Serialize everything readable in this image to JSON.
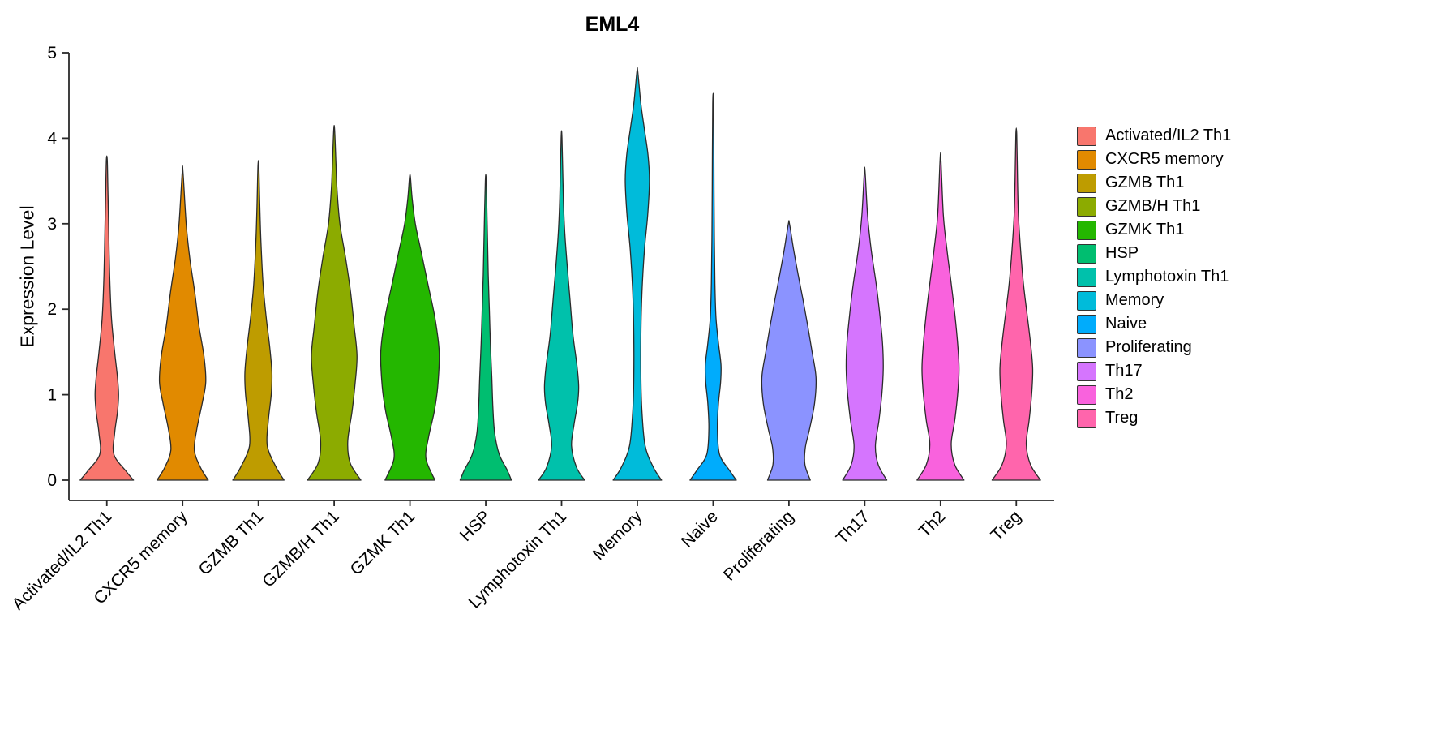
{
  "chart_data": {
    "type": "violin",
    "title": "EML4",
    "ylabel": "Expression Level",
    "ylim": [
      0,
      5
    ],
    "yticks": [
      0,
      1,
      2,
      3,
      4,
      5
    ],
    "legend_position": "right",
    "categories": [
      "Activated/IL2 Th1",
      "CXCR5 memory",
      "GZMB Th1",
      "GZMB/H Th1",
      "GZMK Th1",
      "HSP",
      "Lymphotoxin Th1",
      "Memory",
      "Naive",
      "Proliferating",
      "Th17",
      "Th2",
      "Treg"
    ],
    "series": [
      {
        "name": "Activated/IL2 Th1",
        "color": "#F8766D",
        "max_expression": 3.75,
        "profile": [
          [
            0,
            0.75
          ],
          [
            0.1,
            0.55
          ],
          [
            0.3,
            0.2
          ],
          [
            0.55,
            0.22
          ],
          [
            0.8,
            0.3
          ],
          [
            1.0,
            0.33
          ],
          [
            1.2,
            0.3
          ],
          [
            1.5,
            0.22
          ],
          [
            1.9,
            0.13
          ],
          [
            2.4,
            0.08
          ],
          [
            3.0,
            0.05
          ],
          [
            3.4,
            0.03
          ],
          [
            3.75,
            0.012
          ]
        ]
      },
      {
        "name": "CXCR5 memory",
        "color": "#E18A00",
        "max_expression": 3.6,
        "profile": [
          [
            0,
            0.72
          ],
          [
            0.15,
            0.5
          ],
          [
            0.35,
            0.33
          ],
          [
            0.6,
            0.4
          ],
          [
            0.9,
            0.55
          ],
          [
            1.15,
            0.65
          ],
          [
            1.45,
            0.6
          ],
          [
            1.8,
            0.46
          ],
          [
            2.2,
            0.34
          ],
          [
            2.6,
            0.2
          ],
          [
            3.0,
            0.1
          ],
          [
            3.6,
            0.012
          ]
        ]
      },
      {
        "name": "GZMB Th1",
        "color": "#BE9C00",
        "max_expression": 3.68,
        "profile": [
          [
            0,
            0.72
          ],
          [
            0.15,
            0.5
          ],
          [
            0.4,
            0.25
          ],
          [
            0.7,
            0.28
          ],
          [
            1.0,
            0.36
          ],
          [
            1.25,
            0.38
          ],
          [
            1.55,
            0.32
          ],
          [
            1.9,
            0.22
          ],
          [
            2.3,
            0.13
          ],
          [
            2.8,
            0.07
          ],
          [
            3.2,
            0.04
          ],
          [
            3.68,
            0.012
          ]
        ]
      },
      {
        "name": "GZMB/H Th1",
        "color": "#8CAB00",
        "max_expression": 4.1,
        "profile": [
          [
            0,
            0.75
          ],
          [
            0.2,
            0.45
          ],
          [
            0.45,
            0.38
          ],
          [
            0.8,
            0.5
          ],
          [
            1.1,
            0.58
          ],
          [
            1.45,
            0.64
          ],
          [
            1.8,
            0.56
          ],
          [
            2.2,
            0.46
          ],
          [
            2.6,
            0.32
          ],
          [
            3.0,
            0.16
          ],
          [
            3.4,
            0.08
          ],
          [
            3.7,
            0.05
          ],
          [
            4.1,
            0.012
          ]
        ]
      },
      {
        "name": "GZMK Th1",
        "color": "#24B700",
        "max_expression": 3.55,
        "profile": [
          [
            0,
            0.7
          ],
          [
            0.25,
            0.45
          ],
          [
            0.5,
            0.52
          ],
          [
            0.8,
            0.68
          ],
          [
            1.1,
            0.78
          ],
          [
            1.5,
            0.82
          ],
          [
            1.9,
            0.7
          ],
          [
            2.3,
            0.5
          ],
          [
            2.7,
            0.3
          ],
          [
            3.0,
            0.15
          ],
          [
            3.3,
            0.06
          ],
          [
            3.55,
            0.012
          ]
        ]
      },
      {
        "name": "HSP",
        "color": "#00BE70",
        "max_expression": 3.5,
        "profile": [
          [
            0,
            0.72
          ],
          [
            0.12,
            0.6
          ],
          [
            0.3,
            0.38
          ],
          [
            0.55,
            0.25
          ],
          [
            0.85,
            0.2
          ],
          [
            1.2,
            0.17
          ],
          [
            1.6,
            0.13
          ],
          [
            2.0,
            0.1
          ],
          [
            2.4,
            0.07
          ],
          [
            2.9,
            0.045
          ],
          [
            3.5,
            0.012
          ]
        ]
      },
      {
        "name": "Lymphotoxin Th1",
        "color": "#00C1AB",
        "max_expression": 4.0,
        "profile": [
          [
            0,
            0.65
          ],
          [
            0.15,
            0.42
          ],
          [
            0.4,
            0.28
          ],
          [
            0.65,
            0.35
          ],
          [
            0.9,
            0.45
          ],
          [
            1.1,
            0.48
          ],
          [
            1.35,
            0.43
          ],
          [
            1.7,
            0.32
          ],
          [
            2.1,
            0.24
          ],
          [
            2.5,
            0.16
          ],
          [
            2.9,
            0.09
          ],
          [
            3.3,
            0.05
          ],
          [
            4.0,
            0.012
          ]
        ]
      },
      {
        "name": "Memory",
        "color": "#00BBDA",
        "max_expression": 4.78,
        "profile": [
          [
            0,
            0.68
          ],
          [
            0.15,
            0.45
          ],
          [
            0.4,
            0.22
          ],
          [
            0.8,
            0.13
          ],
          [
            1.2,
            0.1
          ],
          [
            1.7,
            0.1
          ],
          [
            2.2,
            0.13
          ],
          [
            2.7,
            0.2
          ],
          [
            3.1,
            0.29
          ],
          [
            3.5,
            0.34
          ],
          [
            3.8,
            0.3
          ],
          [
            4.1,
            0.2
          ],
          [
            4.4,
            0.1
          ],
          [
            4.78,
            0.012
          ]
        ]
      },
      {
        "name": "Naive",
        "color": "#00ACFC",
        "max_expression": 4.4,
        "profile": [
          [
            0,
            0.65
          ],
          [
            0.12,
            0.45
          ],
          [
            0.3,
            0.18
          ],
          [
            0.6,
            0.12
          ],
          [
            0.9,
            0.15
          ],
          [
            1.15,
            0.21
          ],
          [
            1.35,
            0.22
          ],
          [
            1.6,
            0.15
          ],
          [
            1.9,
            0.08
          ],
          [
            2.3,
            0.05
          ],
          [
            2.8,
            0.035
          ],
          [
            3.4,
            0.025
          ],
          [
            4.4,
            0.012
          ]
        ]
      },
      {
        "name": "Proliferating",
        "color": "#8B93FF",
        "max_expression": 3.0,
        "profile": [
          [
            0,
            0.6
          ],
          [
            0.18,
            0.45
          ],
          [
            0.38,
            0.46
          ],
          [
            0.6,
            0.58
          ],
          [
            0.9,
            0.72
          ],
          [
            1.2,
            0.76
          ],
          [
            1.5,
            0.65
          ],
          [
            1.8,
            0.53
          ],
          [
            2.1,
            0.4
          ],
          [
            2.4,
            0.26
          ],
          [
            2.7,
            0.13
          ],
          [
            3.0,
            0.015
          ]
        ]
      },
      {
        "name": "Th17",
        "color": "#D575FE",
        "max_expression": 3.6,
        "profile": [
          [
            0,
            0.62
          ],
          [
            0.18,
            0.38
          ],
          [
            0.4,
            0.3
          ],
          [
            0.7,
            0.4
          ],
          [
            1.0,
            0.48
          ],
          [
            1.3,
            0.52
          ],
          [
            1.6,
            0.5
          ],
          [
            1.95,
            0.42
          ],
          [
            2.3,
            0.32
          ],
          [
            2.7,
            0.18
          ],
          [
            3.1,
            0.08
          ],
          [
            3.6,
            0.012
          ]
        ]
      },
      {
        "name": "Th2",
        "color": "#F962DD",
        "max_expression": 3.75,
        "profile": [
          [
            0,
            0.66
          ],
          [
            0.18,
            0.4
          ],
          [
            0.42,
            0.3
          ],
          [
            0.7,
            0.4
          ],
          [
            1.0,
            0.48
          ],
          [
            1.3,
            0.52
          ],
          [
            1.6,
            0.48
          ],
          [
            1.95,
            0.4
          ],
          [
            2.3,
            0.3
          ],
          [
            2.7,
            0.18
          ],
          [
            3.1,
            0.08
          ],
          [
            3.75,
            0.012
          ]
        ]
      },
      {
        "name": "Treg",
        "color": "#FF65AC",
        "max_expression": 4.05,
        "profile": [
          [
            0,
            0.68
          ],
          [
            0.18,
            0.4
          ],
          [
            0.42,
            0.28
          ],
          [
            0.7,
            0.36
          ],
          [
            1.0,
            0.43
          ],
          [
            1.3,
            0.46
          ],
          [
            1.6,
            0.4
          ],
          [
            1.95,
            0.3
          ],
          [
            2.3,
            0.2
          ],
          [
            2.7,
            0.12
          ],
          [
            3.1,
            0.06
          ],
          [
            3.5,
            0.035
          ],
          [
            4.05,
            0.012
          ]
        ]
      }
    ]
  }
}
